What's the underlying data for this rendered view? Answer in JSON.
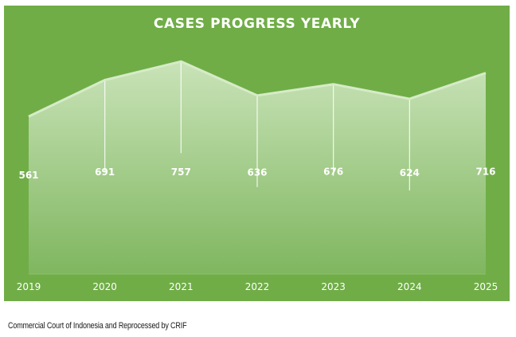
{
  "chart_data": {
    "type": "area",
    "title": "CASES PROGRESS YEARLY",
    "categories": [
      "2019",
      "2020",
      "2021",
      "2022",
      "2023",
      "2024",
      "2025"
    ],
    "series": [
      {
        "name": "Cases",
        "values": [
          561,
          691,
          757,
          636,
          676,
          624,
          716
        ]
      }
    ],
    "data_labels": [
      "561",
      "691",
      "757",
      "636",
      "676",
      "624",
      "716"
    ],
    "xlabel": "",
    "ylabel": "",
    "ylim": [
      0,
      800
    ],
    "grid": false,
    "legend": "none"
  },
  "colors": {
    "background": "#70ad47",
    "area_top": "#c6e0b4",
    "area_bottom": "#82b964",
    "text": "#ffffff"
  },
  "source": "Commercial Court of Indonesia and Reprocessed by CRIF"
}
